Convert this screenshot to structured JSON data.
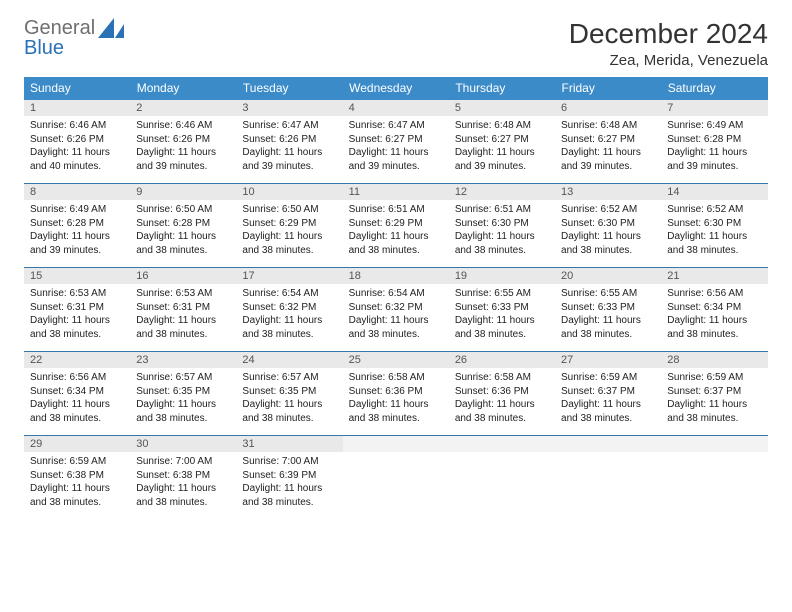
{
  "brand": {
    "line1": "General",
    "line2": "Blue"
  },
  "title": "December 2024",
  "location": "Zea, Merida, Venezuela",
  "colors": {
    "header_bg": "#3b8bc9",
    "header_text": "#ffffff",
    "daynum_bg": "#e9e9e9",
    "accent": "#2a72b5",
    "gray_text": "#6f6f6f",
    "rule": "#3377aa"
  },
  "weekdays": [
    "Sunday",
    "Monday",
    "Tuesday",
    "Wednesday",
    "Thursday",
    "Friday",
    "Saturday"
  ],
  "weeks": [
    [
      {
        "d": "1",
        "sr": "Sunrise: 6:46 AM",
        "ss": "Sunset: 6:26 PM",
        "dl1": "Daylight: 11 hours",
        "dl2": "and 40 minutes."
      },
      {
        "d": "2",
        "sr": "Sunrise: 6:46 AM",
        "ss": "Sunset: 6:26 PM",
        "dl1": "Daylight: 11 hours",
        "dl2": "and 39 minutes."
      },
      {
        "d": "3",
        "sr": "Sunrise: 6:47 AM",
        "ss": "Sunset: 6:26 PM",
        "dl1": "Daylight: 11 hours",
        "dl2": "and 39 minutes."
      },
      {
        "d": "4",
        "sr": "Sunrise: 6:47 AM",
        "ss": "Sunset: 6:27 PM",
        "dl1": "Daylight: 11 hours",
        "dl2": "and 39 minutes."
      },
      {
        "d": "5",
        "sr": "Sunrise: 6:48 AM",
        "ss": "Sunset: 6:27 PM",
        "dl1": "Daylight: 11 hours",
        "dl2": "and 39 minutes."
      },
      {
        "d": "6",
        "sr": "Sunrise: 6:48 AM",
        "ss": "Sunset: 6:27 PM",
        "dl1": "Daylight: 11 hours",
        "dl2": "and 39 minutes."
      },
      {
        "d": "7",
        "sr": "Sunrise: 6:49 AM",
        "ss": "Sunset: 6:28 PM",
        "dl1": "Daylight: 11 hours",
        "dl2": "and 39 minutes."
      }
    ],
    [
      {
        "d": "8",
        "sr": "Sunrise: 6:49 AM",
        "ss": "Sunset: 6:28 PM",
        "dl1": "Daylight: 11 hours",
        "dl2": "and 39 minutes."
      },
      {
        "d": "9",
        "sr": "Sunrise: 6:50 AM",
        "ss": "Sunset: 6:28 PM",
        "dl1": "Daylight: 11 hours",
        "dl2": "and 38 minutes."
      },
      {
        "d": "10",
        "sr": "Sunrise: 6:50 AM",
        "ss": "Sunset: 6:29 PM",
        "dl1": "Daylight: 11 hours",
        "dl2": "and 38 minutes."
      },
      {
        "d": "11",
        "sr": "Sunrise: 6:51 AM",
        "ss": "Sunset: 6:29 PM",
        "dl1": "Daylight: 11 hours",
        "dl2": "and 38 minutes."
      },
      {
        "d": "12",
        "sr": "Sunrise: 6:51 AM",
        "ss": "Sunset: 6:30 PM",
        "dl1": "Daylight: 11 hours",
        "dl2": "and 38 minutes."
      },
      {
        "d": "13",
        "sr": "Sunrise: 6:52 AM",
        "ss": "Sunset: 6:30 PM",
        "dl1": "Daylight: 11 hours",
        "dl2": "and 38 minutes."
      },
      {
        "d": "14",
        "sr": "Sunrise: 6:52 AM",
        "ss": "Sunset: 6:30 PM",
        "dl1": "Daylight: 11 hours",
        "dl2": "and 38 minutes."
      }
    ],
    [
      {
        "d": "15",
        "sr": "Sunrise: 6:53 AM",
        "ss": "Sunset: 6:31 PM",
        "dl1": "Daylight: 11 hours",
        "dl2": "and 38 minutes."
      },
      {
        "d": "16",
        "sr": "Sunrise: 6:53 AM",
        "ss": "Sunset: 6:31 PM",
        "dl1": "Daylight: 11 hours",
        "dl2": "and 38 minutes."
      },
      {
        "d": "17",
        "sr": "Sunrise: 6:54 AM",
        "ss": "Sunset: 6:32 PM",
        "dl1": "Daylight: 11 hours",
        "dl2": "and 38 minutes."
      },
      {
        "d": "18",
        "sr": "Sunrise: 6:54 AM",
        "ss": "Sunset: 6:32 PM",
        "dl1": "Daylight: 11 hours",
        "dl2": "and 38 minutes."
      },
      {
        "d": "19",
        "sr": "Sunrise: 6:55 AM",
        "ss": "Sunset: 6:33 PM",
        "dl1": "Daylight: 11 hours",
        "dl2": "and 38 minutes."
      },
      {
        "d": "20",
        "sr": "Sunrise: 6:55 AM",
        "ss": "Sunset: 6:33 PM",
        "dl1": "Daylight: 11 hours",
        "dl2": "and 38 minutes."
      },
      {
        "d": "21",
        "sr": "Sunrise: 6:56 AM",
        "ss": "Sunset: 6:34 PM",
        "dl1": "Daylight: 11 hours",
        "dl2": "and 38 minutes."
      }
    ],
    [
      {
        "d": "22",
        "sr": "Sunrise: 6:56 AM",
        "ss": "Sunset: 6:34 PM",
        "dl1": "Daylight: 11 hours",
        "dl2": "and 38 minutes."
      },
      {
        "d": "23",
        "sr": "Sunrise: 6:57 AM",
        "ss": "Sunset: 6:35 PM",
        "dl1": "Daylight: 11 hours",
        "dl2": "and 38 minutes."
      },
      {
        "d": "24",
        "sr": "Sunrise: 6:57 AM",
        "ss": "Sunset: 6:35 PM",
        "dl1": "Daylight: 11 hours",
        "dl2": "and 38 minutes."
      },
      {
        "d": "25",
        "sr": "Sunrise: 6:58 AM",
        "ss": "Sunset: 6:36 PM",
        "dl1": "Daylight: 11 hours",
        "dl2": "and 38 minutes."
      },
      {
        "d": "26",
        "sr": "Sunrise: 6:58 AM",
        "ss": "Sunset: 6:36 PM",
        "dl1": "Daylight: 11 hours",
        "dl2": "and 38 minutes."
      },
      {
        "d": "27",
        "sr": "Sunrise: 6:59 AM",
        "ss": "Sunset: 6:37 PM",
        "dl1": "Daylight: 11 hours",
        "dl2": "and 38 minutes."
      },
      {
        "d": "28",
        "sr": "Sunrise: 6:59 AM",
        "ss": "Sunset: 6:37 PM",
        "dl1": "Daylight: 11 hours",
        "dl2": "and 38 minutes."
      }
    ],
    [
      {
        "d": "29",
        "sr": "Sunrise: 6:59 AM",
        "ss": "Sunset: 6:38 PM",
        "dl1": "Daylight: 11 hours",
        "dl2": "and 38 minutes."
      },
      {
        "d": "30",
        "sr": "Sunrise: 7:00 AM",
        "ss": "Sunset: 6:38 PM",
        "dl1": "Daylight: 11 hours",
        "dl2": "and 38 minutes."
      },
      {
        "d": "31",
        "sr": "Sunrise: 7:00 AM",
        "ss": "Sunset: 6:39 PM",
        "dl1": "Daylight: 11 hours",
        "dl2": "and 38 minutes."
      },
      {
        "d": "",
        "sr": "",
        "ss": "",
        "dl1": "",
        "dl2": ""
      },
      {
        "d": "",
        "sr": "",
        "ss": "",
        "dl1": "",
        "dl2": ""
      },
      {
        "d": "",
        "sr": "",
        "ss": "",
        "dl1": "",
        "dl2": ""
      },
      {
        "d": "",
        "sr": "",
        "ss": "",
        "dl1": "",
        "dl2": ""
      }
    ]
  ]
}
